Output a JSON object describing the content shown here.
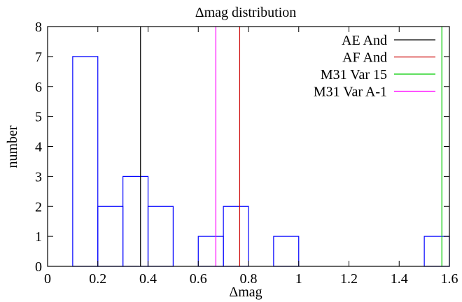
{
  "chart_data": {
    "type": "bar",
    "title": "Δmag distribution",
    "xlabel": "Δmag",
    "ylabel": "number",
    "xlim": [
      0,
      1.6
    ],
    "ylim": [
      0,
      8
    ],
    "xticks": [
      {
        "value": 0,
        "label": "0"
      },
      {
        "value": 0.2,
        "label": "0.2"
      },
      {
        "value": 0.4,
        "label": "0.4"
      },
      {
        "value": 0.6,
        "label": "0.6"
      },
      {
        "value": 0.8,
        "label": "0.8"
      },
      {
        "value": 1.0,
        "label": "1"
      },
      {
        "value": 1.2,
        "label": "1.2"
      },
      {
        "value": 1.4,
        "label": "1.4"
      },
      {
        "value": 1.6,
        "label": "1.6"
      }
    ],
    "yticks": [
      {
        "value": 0,
        "label": "0"
      },
      {
        "value": 1,
        "label": "1"
      },
      {
        "value": 2,
        "label": "2"
      },
      {
        "value": 3,
        "label": "3"
      },
      {
        "value": 4,
        "label": "4"
      },
      {
        "value": 5,
        "label": "5"
      },
      {
        "value": 6,
        "label": "6"
      },
      {
        "value": 7,
        "label": "7"
      },
      {
        "value": 8,
        "label": "8"
      }
    ],
    "histogram": {
      "color": "#0000ff",
      "bins": [
        {
          "x0": 0.1,
          "x1": 0.2,
          "count": 7
        },
        {
          "x0": 0.2,
          "x1": 0.3,
          "count": 2
        },
        {
          "x0": 0.3,
          "x1": 0.4,
          "count": 3
        },
        {
          "x0": 0.4,
          "x1": 0.5,
          "count": 2
        },
        {
          "x0": 0.6,
          "x1": 0.7,
          "count": 1
        },
        {
          "x0": 0.7,
          "x1": 0.8,
          "count": 2
        },
        {
          "x0": 0.9,
          "x1": 1.0,
          "count": 1
        },
        {
          "x0": 1.5,
          "x1": 1.6,
          "count": 1
        }
      ]
    },
    "series": [
      {
        "name": "AE And",
        "x": 0.37,
        "color": "#000000"
      },
      {
        "name": "AF And",
        "x": 0.765,
        "color": "#cc0000"
      },
      {
        "name": "M31 Var 15",
        "x": 1.57,
        "color": "#00cc00"
      },
      {
        "name": "M31 Var A-1",
        "x": 0.67,
        "color": "#ff00ff"
      }
    ],
    "legend_position": "top-right",
    "grid": false
  }
}
